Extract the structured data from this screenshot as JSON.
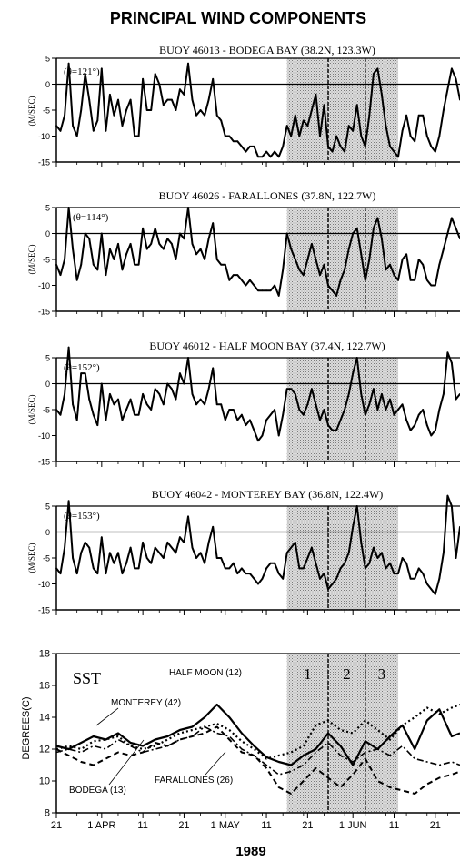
{
  "title": "PRINCIPAL WIND COMPONENTS",
  "x_axis": {
    "tick_labels": [
      "21",
      "1 APR",
      "11",
      "21",
      "1 MAY",
      "11",
      "21",
      "1 JUN",
      "11",
      "21"
    ],
    "tick_days": [
      0,
      11,
      21,
      31,
      41,
      51,
      61,
      72,
      82,
      92
    ],
    "range_days": [
      0,
      98
    ],
    "label": "1989"
  },
  "shaded_periods": [
    {
      "label": "1",
      "start_day": 56,
      "end_day": 66
    },
    {
      "label": "2",
      "start_day": 66,
      "end_day": 75
    },
    {
      "label": "3",
      "start_day": 75,
      "end_day": 83
    }
  ],
  "wind_panels": [
    {
      "title": "BUOY 46013 - BODEGA BAY (38.2N, 123.3W)",
      "theta": "(θ=121°)",
      "ylabel": "(M/SEC)"
    },
    {
      "title": "BUOY 46026 - FARALLONES (37.8N, 122.7W)",
      "theta": "(θ=114°)",
      "ylabel": "(M/SEC)"
    },
    {
      "title": "BUOY 46012 - HALF MOON BAY (37.4N, 122.7W)",
      "theta": "(θ=152°)",
      "ylabel": "(M/SEC)"
    },
    {
      "title": "BUOY 46042 - MONTEREY BAY (36.8N, 122.4W)",
      "theta": "(θ=153°)",
      "ylabel": "(M/SEC)"
    }
  ],
  "sst_panel": {
    "label": "SST",
    "ylabel": "DEGREES(C)",
    "series_labels": [
      "HALF MOON (12)",
      "MONTEREY (42)",
      "BODEGA (13)",
      "FARALLONES (26)"
    ]
  },
  "chart_data": [
    {
      "type": "line",
      "title": "BUOY 46013 - BODEGA BAY (38.2N, 123.3W)",
      "ylabel": "(M/SEC)",
      "ylim": [
        -15,
        5
      ],
      "yticks": [
        5,
        0,
        -5,
        -10,
        -15
      ],
      "x_days": [
        0,
        1,
        2,
        3,
        4,
        5,
        6,
        7,
        8,
        9,
        10,
        11,
        12,
        13,
        14,
        15,
        16,
        17,
        18,
        19,
        20,
        21,
        22,
        23,
        24,
        25,
        26,
        27,
        28,
        29,
        30,
        31,
        32,
        33,
        34,
        35,
        36,
        37,
        38,
        39,
        40,
        41,
        42,
        43,
        44,
        45,
        46,
        47,
        48,
        49,
        50,
        51,
        52,
        53,
        54,
        55,
        56,
        57,
        58,
        59,
        60,
        61,
        62,
        63,
        64,
        65,
        66,
        67,
        68,
        69,
        70,
        71,
        72,
        73,
        74,
        75,
        76,
        77,
        78,
        79,
        80,
        81,
        82,
        83,
        84,
        85,
        86,
        87,
        88,
        89,
        90,
        91,
        92,
        93,
        94,
        95,
        96,
        97,
        98
      ],
      "values": [
        -8,
        -9,
        -6,
        4,
        -8,
        -10,
        -5,
        2,
        -3,
        -9,
        -7,
        3,
        -9,
        -2,
        -6,
        -3,
        -8,
        -5,
        -3,
        -10,
        -10,
        1,
        -5,
        -5,
        2,
        0,
        -4,
        -3,
        -3,
        -5,
        -1,
        -2,
        4,
        -3,
        -6,
        -5,
        -6,
        -3,
        1,
        -6,
        -7,
        -10,
        -10,
        -11,
        -11,
        -12,
        -13,
        -12,
        -12,
        -14,
        -14,
        -13,
        -14,
        -13,
        -14,
        -12,
        -8,
        -10,
        -6,
        -10,
        -7,
        -8,
        -5,
        -2,
        -10,
        -4,
        -12,
        -13,
        -10,
        -12,
        -13,
        -8,
        -9,
        -4,
        -10,
        -12,
        -6,
        2,
        3,
        -2,
        -8,
        -12,
        -13,
        -14,
        -9,
        -6,
        -10,
        -11,
        -6,
        -6,
        -10,
        -12,
        -13,
        -10,
        -5,
        -1,
        3,
        1,
        -3
      ]
    },
    {
      "type": "line",
      "title": "BUOY 46026 - FARALLONES (37.8N, 122.7W)",
      "ylabel": "(M/SEC)",
      "ylim": [
        -15,
        5
      ],
      "yticks": [
        5,
        0,
        -5,
        -10,
        -15
      ],
      "x_days": [
        0,
        1,
        2,
        3,
        4,
        5,
        6,
        7,
        8,
        9,
        10,
        11,
        12,
        13,
        14,
        15,
        16,
        17,
        18,
        19,
        20,
        21,
        22,
        23,
        24,
        25,
        26,
        27,
        28,
        29,
        30,
        31,
        32,
        33,
        34,
        35,
        36,
        37,
        38,
        39,
        40,
        41,
        42,
        43,
        44,
        45,
        46,
        47,
        48,
        49,
        50,
        51,
        52,
        53,
        54,
        55,
        56,
        57,
        58,
        59,
        60,
        61,
        62,
        63,
        64,
        65,
        66,
        67,
        68,
        69,
        70,
        71,
        72,
        73,
        74,
        75,
        76,
        77,
        78,
        79,
        80,
        81,
        82,
        83,
        84,
        85,
        86,
        87,
        88,
        89,
        90,
        91,
        92,
        93,
        94,
        95,
        96,
        97,
        98
      ],
      "values": [
        -6,
        -8,
        -5,
        5,
        -3,
        -9,
        -6,
        0,
        -1,
        -6,
        -7,
        0,
        -8,
        -3,
        -5,
        -2,
        -7,
        -4,
        -2,
        -6,
        -6,
        1,
        -3,
        -2,
        1,
        -2,
        -3,
        -1,
        -2,
        -5,
        0,
        -1,
        5,
        -2,
        -4,
        -3,
        -5,
        -1,
        2,
        -5,
        -6,
        -6,
        -9,
        -8,
        -8,
        -9,
        -10,
        -9,
        -10,
        -11,
        -11,
        -11,
        -11,
        -10,
        -12,
        -7,
        0,
        -3,
        -5,
        -7,
        -8,
        -5,
        -2,
        -5,
        -8,
        -6,
        -10,
        -11,
        -12,
        -9,
        -7,
        -3,
        0,
        1,
        -4,
        -9,
        -5,
        1,
        3,
        -1,
        -7,
        -6,
        -8,
        -9,
        -5,
        -4,
        -9,
        -9,
        -5,
        -6,
        -9,
        -10,
        -10,
        -6,
        -3,
        0,
        3,
        1,
        -1
      ]
    },
    {
      "type": "line",
      "title": "BUOY 46012 - HALF MOON BAY (37.4N, 122.7W)",
      "ylabel": "(M/SEC)",
      "ylim": [
        -15,
        5
      ],
      "yticks": [
        5,
        0,
        -5,
        -10,
        -15
      ],
      "x_days": [
        0,
        1,
        2,
        3,
        4,
        5,
        6,
        7,
        8,
        9,
        10,
        11,
        12,
        13,
        14,
        15,
        16,
        17,
        18,
        19,
        20,
        21,
        22,
        23,
        24,
        25,
        26,
        27,
        28,
        29,
        30,
        31,
        32,
        33,
        34,
        35,
        36,
        37,
        38,
        39,
        40,
        41,
        42,
        43,
        44,
        45,
        46,
        47,
        48,
        49,
        50,
        51,
        52,
        53,
        54,
        55,
        56,
        57,
        58,
        59,
        60,
        61,
        62,
        63,
        64,
        65,
        66,
        67,
        68,
        69,
        70,
        71,
        72,
        73,
        74,
        75,
        76,
        77,
        78,
        79,
        80,
        81,
        82,
        83,
        84,
        85,
        86,
        87,
        88,
        89,
        90,
        91,
        92,
        93,
        94,
        95,
        96,
        97,
        98
      ],
      "values": [
        -5,
        -6,
        -2,
        7,
        -4,
        -7,
        2,
        2,
        -3,
        -6,
        -8,
        0,
        -7,
        -2,
        -4,
        -3,
        -7,
        -5,
        -3,
        -6,
        -6,
        -2,
        -4,
        -5,
        -1,
        -2,
        -4,
        0,
        -1,
        -3,
        2,
        0,
        5,
        -2,
        -4,
        -3,
        -4,
        -1,
        3,
        -4,
        -4,
        -7,
        -5,
        -5,
        -7,
        -6,
        -8,
        -7,
        -9,
        -11,
        -10,
        -7,
        -6,
        -5,
        -10,
        -6,
        -1,
        -1,
        -2,
        -5,
        -6,
        -4,
        -1,
        -4,
        -7,
        -5,
        -8,
        -9,
        -9,
        -7,
        -5,
        -2,
        2,
        5,
        -2,
        -6,
        -4,
        -1,
        -5,
        -2,
        -5,
        -3,
        -6,
        -5,
        -4,
        -7,
        -9,
        -8,
        -6,
        -5,
        -8,
        -10,
        -9,
        -5,
        -2,
        6,
        4,
        -3,
        -2
      ]
    },
    {
      "type": "line",
      "title": "BUOY 46042 - MONTEREY BAY (36.8N, 122.4W)",
      "ylabel": "(M/SEC)",
      "ylim": [
        -15,
        5
      ],
      "yticks": [
        5,
        0,
        -5,
        -10,
        -15
      ],
      "x_days": [
        0,
        1,
        2,
        3,
        4,
        5,
        6,
        7,
        8,
        9,
        10,
        11,
        12,
        13,
        14,
        15,
        16,
        17,
        18,
        19,
        20,
        21,
        22,
        23,
        24,
        25,
        26,
        27,
        28,
        29,
        30,
        31,
        32,
        33,
        34,
        35,
        36,
        37,
        38,
        39,
        40,
        41,
        42,
        43,
        44,
        45,
        46,
        47,
        48,
        49,
        50,
        51,
        52,
        53,
        54,
        55,
        56,
        57,
        58,
        59,
        60,
        61,
        62,
        63,
        64,
        65,
        66,
        67,
        68,
        69,
        70,
        71,
        72,
        73,
        74,
        75,
        76,
        77,
        78,
        79,
        80,
        81,
        82,
        83,
        84,
        85,
        86,
        87,
        88,
        89,
        90,
        91,
        92,
        93,
        94,
        95,
        96,
        97,
        98
      ],
      "values": [
        -7,
        -8,
        -3,
        6,
        -5,
        -8,
        -4,
        -2,
        -3,
        -7,
        -8,
        -1,
        -8,
        -4,
        -6,
        -4,
        -8,
        -6,
        -3,
        -7,
        -7,
        -2,
        -5,
        -6,
        -3,
        -4,
        -5,
        -2,
        -3,
        -4,
        -1,
        -2,
        3,
        -3,
        -5,
        -4,
        -6,
        -2,
        1,
        -5,
        -5,
        -7,
        -7,
        -6,
        -8,
        -7,
        -8,
        -8,
        -9,
        -10,
        -9,
        -7,
        -6,
        -6,
        -8,
        -9,
        -4,
        -3,
        -2,
        -7,
        -7,
        -5,
        -3,
        -6,
        -9,
        -8,
        -11,
        -10,
        -9,
        -7,
        -6,
        -4,
        1,
        5,
        -2,
        -7,
        -6,
        -3,
        -5,
        -4,
        -7,
        -6,
        -8,
        -8,
        -5,
        -6,
        -9,
        -9,
        -7,
        -8,
        -10,
        -11,
        -12,
        -9,
        -4,
        7,
        5,
        -5,
        1
      ]
    },
    {
      "type": "line",
      "title": "SST",
      "ylabel": "DEGREES(C)",
      "ylim": [
        8,
        18
      ],
      "yticks": [
        18,
        16,
        14,
        12,
        10,
        8
      ],
      "x_days": [
        0,
        3,
        6,
        9,
        12,
        15,
        18,
        21,
        24,
        27,
        30,
        33,
        36,
        39,
        42,
        45,
        48,
        51,
        54,
        57,
        60,
        63,
        66,
        69,
        72,
        75,
        78,
        81,
        84,
        87,
        90,
        93,
        96,
        98
      ],
      "series": [
        {
          "name": "HALF MOON (12)",
          "values": [
            12.2,
            12.0,
            12.4,
            12.8,
            12.6,
            13.0,
            12.4,
            12.2,
            12.6,
            12.8,
            13.2,
            13.4,
            14.0,
            14.8,
            14.0,
            13.0,
            12.2,
            11.5,
            11.2,
            11.0,
            11.6,
            12.0,
            13.0,
            12.2,
            11.0,
            12.5,
            12.0,
            12.8,
            13.5,
            12.0,
            13.8,
            14.5,
            12.8,
            13.0
          ]
        },
        {
          "name": "MONTEREY (42)",
          "values": [
            12.0,
            12.2,
            12.0,
            12.5,
            12.6,
            12.8,
            12.2,
            12.0,
            12.2,
            12.6,
            13.0,
            13.2,
            13.4,
            13.6,
            13.2,
            12.5,
            12.0,
            11.4,
            11.6,
            11.8,
            12.2,
            13.5,
            13.8,
            13.2,
            13.0,
            13.8,
            13.2,
            12.6,
            13.5,
            14.0,
            14.6,
            14.2,
            14.6,
            14.8
          ]
        },
        {
          "name": "BODEGA (13)",
          "values": [
            11.8,
            12.0,
            11.8,
            12.2,
            12.0,
            12.6,
            12.2,
            11.8,
            12.0,
            12.2,
            12.6,
            12.8,
            13.4,
            13.0,
            12.8,
            12.0,
            11.6,
            11.0,
            10.4,
            10.6,
            11.0,
            11.8,
            12.4,
            11.6,
            11.2,
            11.8,
            12.0,
            11.6,
            12.2,
            11.4,
            11.2,
            11.0,
            11.2,
            11.0
          ]
        },
        {
          "name": "FARALLONES (26)",
          "values": [
            12.0,
            11.6,
            11.2,
            11.0,
            11.4,
            11.8,
            11.6,
            11.8,
            12.4,
            12.2,
            12.6,
            12.8,
            13.0,
            13.4,
            12.6,
            11.8,
            11.6,
            10.8,
            9.6,
            9.2,
            10.0,
            10.8,
            10.2,
            9.6,
            10.4,
            11.4,
            10.0,
            9.6,
            9.4,
            9.2,
            9.8,
            10.2,
            10.4,
            10.6
          ]
        }
      ]
    }
  ]
}
